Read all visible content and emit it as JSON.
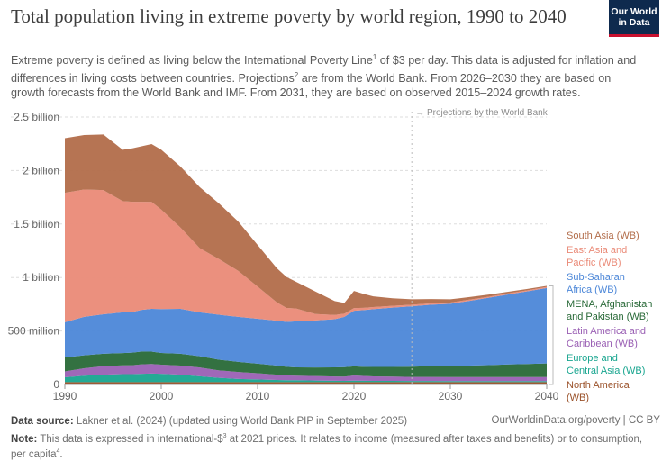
{
  "header": {
    "title": "Total population living in extreme poverty by world region, 1990 to 2040",
    "subtitle_part1": "Extreme poverty is defined as living below the International Poverty Line",
    "subtitle_sup1": "1",
    "subtitle_part2": " of $3 per day. This data is adjusted for inflation and differences in living costs between countries. Projections",
    "subtitle_sup2": "2",
    "subtitle_part3": " are from the World Bank. From 2026–2030 they are based on growth forecasts from the World Bank and IMF. From 2031, they are based on observed 2015–2024 growth rates."
  },
  "logo": {
    "line1": "Our World",
    "line2": "in Data"
  },
  "footer": {
    "source_label": "Data source:",
    "source_text": " Lakner et al. (2024) (updated using World Bank PIP in September 2025)",
    "url_license": "OurWorldinData.org/poverty | CC BY",
    "note_label": "Note:",
    "note_part1": " This data is expressed in international-$",
    "note_sup1": "3",
    "note_part2": " at 2021 prices. It relates to income (measured after taxes and benefits) or to consumption, per capita",
    "note_sup2": "4",
    "note_part3": "."
  },
  "chart_data": {
    "type": "area",
    "stacked": true,
    "x": [
      1990,
      1992,
      1994,
      1996,
      1997,
      1998,
      1999,
      2000,
      2002,
      2004,
      2006,
      2008,
      2010,
      2012,
      2013,
      2014,
      2016,
      2018,
      2019,
      2020,
      2021,
      2022,
      2024,
      2026,
      2028,
      2030,
      2032,
      2034,
      2036,
      2038,
      2040
    ],
    "ylim": [
      0,
      2500000000
    ],
    "yticks": [
      0,
      500000000,
      1000000000,
      1500000000,
      2000000000,
      2500000000
    ],
    "ytick_labels": [
      "0",
      "500 million",
      "1 billion",
      "1.5 billion",
      "2 billion",
      "2.5 billion"
    ],
    "xticks": [
      1990,
      2000,
      2010,
      2020,
      2030,
      2040
    ],
    "xtick_labels": [
      "1990",
      "2000",
      "2010",
      "2020",
      "2030",
      "2040"
    ],
    "grid": true,
    "legend_position": "right",
    "projection_start": 2026,
    "projection_label": "→ Projections by the World Bank",
    "series": [
      {
        "name": "North America (WB)",
        "color": "#9a5129",
        "values": [
          22,
          22,
          22,
          22,
          22,
          22,
          22,
          22,
          22,
          22,
          22,
          22,
          22,
          22,
          22,
          22,
          22,
          22,
          22,
          22,
          22,
          22,
          22,
          22,
          22,
          22,
          22,
          22,
          22,
          22,
          22
        ]
      },
      {
        "name": "Europe and Central Asia (WB)",
        "color": "#18a58f",
        "values": [
          45,
          60,
          70,
          75,
          75,
          78,
          80,
          78,
          70,
          55,
          40,
          30,
          25,
          20,
          18,
          18,
          15,
          13,
          12,
          14,
          13,
          12,
          12,
          11,
          11,
          10,
          10,
          10,
          10,
          10,
          10
        ]
      },
      {
        "name": "Latin America and Caribbean (WB)",
        "color": "#9a60b4",
        "values": [
          55,
          70,
          80,
          82,
          83,
          88,
          90,
          85,
          85,
          82,
          70,
          65,
          58,
          50,
          45,
          42,
          42,
          40,
          40,
          48,
          45,
          42,
          40,
          38,
          38,
          37,
          37,
          37,
          37,
          37,
          37
        ]
      },
      {
        "name": "MENA, Afghanistan and Pakistan (WB)",
        "color": "#286937",
        "values": [
          130,
          120,
          115,
          115,
          118,
          120,
          115,
          110,
          110,
          105,
          100,
          95,
          90,
          85,
          80,
          78,
          80,
          85,
          88,
          85,
          85,
          88,
          90,
          95,
          100,
          105,
          108,
          112,
          118,
          122,
          128
        ]
      },
      {
        "name": "Sub-Saharan Africa (WB)",
        "color": "#4c87d8",
        "values": [
          330,
          360,
          370,
          380,
          380,
          390,
          400,
          410,
          420,
          410,
          420,
          420,
          420,
          420,
          420,
          430,
          440,
          450,
          470,
          520,
          530,
          540,
          555,
          565,
          575,
          580,
          605,
          630,
          655,
          680,
          705
        ]
      },
      {
        "name": "East Asia and Pacific (WB)",
        "color": "#ea8a77",
        "values": [
          1210,
          1190,
          1160,
          1040,
          1030,
          1010,
          1000,
          930,
          760,
          600,
          520,
          430,
          300,
          170,
          130,
          120,
          60,
          40,
          30,
          25,
          22,
          20,
          17,
          15,
          13,
          12,
          11,
          10,
          10,
          10,
          10
        ]
      },
      {
        "name": "South Asia (WB)",
        "color": "#b26d4a",
        "values": [
          510,
          510,
          520,
          480,
          500,
          520,
          540,
          560,
          570,
          570,
          520,
          460,
          390,
          320,
          290,
          250,
          210,
          130,
          100,
          160,
          130,
          100,
          70,
          50,
          40,
          30,
          25,
          20,
          15,
          12,
          10
        ]
      }
    ],
    "value_unit_note": "values in millions of people"
  }
}
